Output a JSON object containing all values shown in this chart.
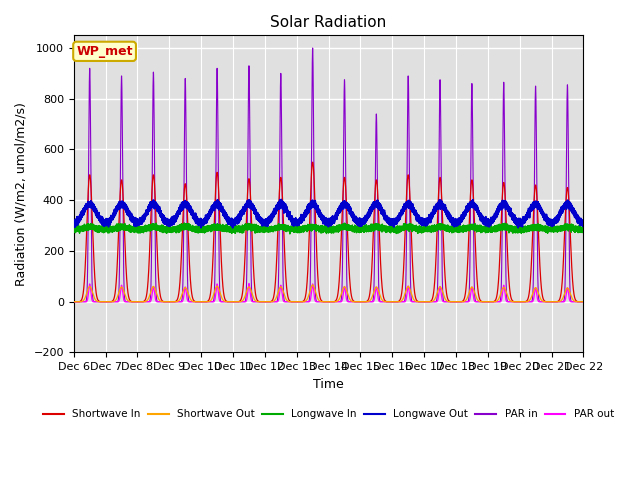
{
  "title": "Solar Radiation",
  "xlabel": "Time",
  "ylabel": "Radiation (W/m2, umol/m2/s)",
  "ylim": [
    -200,
    1050
  ],
  "yticks": [
    -200,
    0,
    200,
    400,
    600,
    800,
    1000
  ],
  "n_days": 16,
  "start_day": 6,
  "colors": {
    "shortwave_in": "#dd0000",
    "shortwave_out": "#ffa500",
    "longwave_in": "#00aa00",
    "longwave_out": "#0000cc",
    "par_in": "#8800cc",
    "par_out": "#ff00ff"
  },
  "legend_labels": [
    "Shortwave In",
    "Shortwave Out",
    "Longwave In",
    "Longwave Out",
    "PAR in",
    "PAR out"
  ],
  "annotation_text": "WP_met",
  "annotation_color": "#cc0000",
  "annotation_bg": "#ffffcc",
  "background_color": "#e0e0e0",
  "grid_color": "#ffffff",
  "title_fontsize": 11,
  "axis_fontsize": 9,
  "tick_fontsize": 8,
  "sw_peaks": [
    500,
    480,
    500,
    465,
    510,
    485,
    490,
    550,
    490,
    480,
    500,
    490,
    480,
    470,
    460,
    450
  ],
  "par_peaks": [
    920,
    890,
    905,
    880,
    920,
    930,
    900,
    1000,
    875,
    740,
    890,
    875,
    860,
    865,
    850,
    855
  ],
  "par_out_peaks": [
    70,
    65,
    60,
    58,
    70,
    72,
    65,
    70,
    60,
    58,
    62,
    60,
    58,
    65,
    55,
    55
  ]
}
